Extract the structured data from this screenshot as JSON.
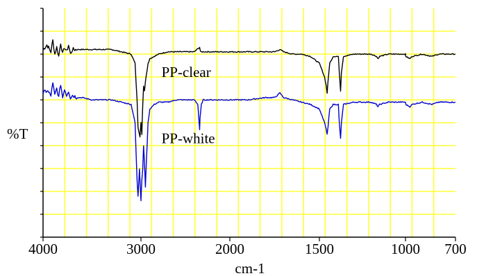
{
  "chart_data": {
    "type": "line",
    "title": "",
    "xlabel": "cm-1",
    "ylabel": "%T",
    "x_reversed": true,
    "x_scale": "reciprocal",
    "xlim": [
      4000,
      700
    ],
    "x_ticks": [
      4000,
      3000,
      2000,
      1500,
      1000,
      700
    ],
    "x_tick_labels": [
      "4000",
      "3000",
      "2000",
      "1500",
      "1000",
      "700"
    ],
    "ylim": [
      0,
      100
    ],
    "grid": true,
    "grid_color": "#ffff33",
    "y_tick_labels_shown": false,
    "legend": "none",
    "series": [
      {
        "name": "PP-clear",
        "color": "#000000",
        "points": [
          [
            4000,
            82
          ],
          [
            3960,
            84
          ],
          [
            3920,
            81
          ],
          [
            3900,
            86
          ],
          [
            3880,
            80
          ],
          [
            3860,
            83
          ],
          [
            3840,
            79
          ],
          [
            3820,
            85
          ],
          [
            3800,
            80
          ],
          [
            3780,
            83
          ],
          [
            3760,
            81
          ],
          [
            3740,
            84
          ],
          [
            3720,
            80
          ],
          [
            3700,
            82
          ],
          [
            3650,
            82
          ],
          [
            3600,
            82
          ],
          [
            3500,
            82
          ],
          [
            3400,
            82
          ],
          [
            3300,
            82
          ],
          [
            3200,
            81
          ],
          [
            3100,
            80
          ],
          [
            3060,
            76
          ],
          [
            3040,
            60
          ],
          [
            3030,
            48
          ],
          [
            3010,
            44
          ],
          [
            3000,
            50
          ],
          [
            2990,
            45
          ],
          [
            2980,
            58
          ],
          [
            2970,
            66
          ],
          [
            2960,
            64
          ],
          [
            2950,
            68
          ],
          [
            2920,
            76
          ],
          [
            2900,
            78
          ],
          [
            2800,
            80
          ],
          [
            2700,
            81
          ],
          [
            2600,
            81
          ],
          [
            2500,
            81
          ],
          [
            2400,
            81
          ],
          [
            2340,
            83
          ],
          [
            2330,
            81
          ],
          [
            2300,
            81
          ],
          [
            2200,
            81
          ],
          [
            2100,
            81
          ],
          [
            2000,
            81
          ],
          [
            1900,
            81
          ],
          [
            1800,
            81
          ],
          [
            1750,
            81
          ],
          [
            1720,
            82
          ],
          [
            1700,
            81
          ],
          [
            1650,
            80
          ],
          [
            1600,
            80
          ],
          [
            1550,
            79
          ],
          [
            1500,
            76
          ],
          [
            1470,
            70
          ],
          [
            1460,
            66
          ],
          [
            1455,
            63
          ],
          [
            1450,
            68
          ],
          [
            1440,
            76
          ],
          [
            1420,
            79
          ],
          [
            1390,
            79
          ],
          [
            1385,
            73
          ],
          [
            1377,
            64
          ],
          [
            1372,
            72
          ],
          [
            1360,
            79
          ],
          [
            1300,
            80
          ],
          [
            1250,
            80
          ],
          [
            1200,
            80
          ],
          [
            1168,
            79
          ],
          [
            1160,
            78
          ],
          [
            1150,
            79
          ],
          [
            1100,
            80
          ],
          [
            1050,
            80
          ],
          [
            1000,
            80
          ],
          [
            998,
            79
          ],
          [
            974,
            78
          ],
          [
            960,
            79
          ],
          [
            900,
            80
          ],
          [
            841,
            79
          ],
          [
            800,
            80
          ],
          [
            750,
            80
          ],
          [
            700,
            80
          ]
        ]
      },
      {
        "name": "PP-white",
        "color": "#0000cc",
        "points": [
          [
            4000,
            63
          ],
          [
            3960,
            64
          ],
          [
            3920,
            62
          ],
          [
            3900,
            67
          ],
          [
            3880,
            62
          ],
          [
            3860,
            65
          ],
          [
            3840,
            61
          ],
          [
            3820,
            67
          ],
          [
            3800,
            61
          ],
          [
            3780,
            65
          ],
          [
            3760,
            62
          ],
          [
            3740,
            64
          ],
          [
            3720,
            61
          ],
          [
            3700,
            62
          ],
          [
            3650,
            61
          ],
          [
            3600,
            61
          ],
          [
            3500,
            60
          ],
          [
            3400,
            60
          ],
          [
            3300,
            60
          ],
          [
            3200,
            59
          ],
          [
            3100,
            58
          ],
          [
            3060,
            50
          ],
          [
            3040,
            25
          ],
          [
            3030,
            18
          ],
          [
            3015,
            30
          ],
          [
            3000,
            16
          ],
          [
            2990,
            25
          ],
          [
            2980,
            30
          ],
          [
            2970,
            40
          ],
          [
            2960,
            32
          ],
          [
            2950,
            22
          ],
          [
            2940,
            32
          ],
          [
            2920,
            50
          ],
          [
            2900,
            56
          ],
          [
            2850,
            58
          ],
          [
            2800,
            59
          ],
          [
            2700,
            59
          ],
          [
            2600,
            60
          ],
          [
            2550,
            60
          ],
          [
            2400,
            60
          ],
          [
            2360,
            58
          ],
          [
            2345,
            50
          ],
          [
            2340,
            47
          ],
          [
            2335,
            52
          ],
          [
            2320,
            58
          ],
          [
            2300,
            60
          ],
          [
            2200,
            60
          ],
          [
            2100,
            60
          ],
          [
            2000,
            60
          ],
          [
            1900,
            60
          ],
          [
            1800,
            61
          ],
          [
            1750,
            61
          ],
          [
            1720,
            63
          ],
          [
            1700,
            61
          ],
          [
            1650,
            60
          ],
          [
            1600,
            59
          ],
          [
            1550,
            58
          ],
          [
            1500,
            56
          ],
          [
            1470,
            50
          ],
          [
            1460,
            47
          ],
          [
            1455,
            45
          ],
          [
            1450,
            48
          ],
          [
            1440,
            56
          ],
          [
            1420,
            58
          ],
          [
            1390,
            58
          ],
          [
            1385,
            51
          ],
          [
            1377,
            43
          ],
          [
            1372,
            50
          ],
          [
            1360,
            58
          ],
          [
            1300,
            59
          ],
          [
            1250,
            59
          ],
          [
            1200,
            59
          ],
          [
            1168,
            58
          ],
          [
            1160,
            57
          ],
          [
            1150,
            58
          ],
          [
            1100,
            59
          ],
          [
            1050,
            59
          ],
          [
            1000,
            59
          ],
          [
            998,
            58
          ],
          [
            974,
            57
          ],
          [
            960,
            58
          ],
          [
            900,
            59
          ],
          [
            841,
            58
          ],
          [
            800,
            59
          ],
          [
            750,
            59
          ],
          [
            700,
            59
          ]
        ]
      }
    ],
    "annotations": [
      {
        "text": "PP-clear",
        "x": 2300,
        "y": 70
      },
      {
        "text": "PP-white",
        "x": 2300,
        "y": 41
      }
    ]
  }
}
